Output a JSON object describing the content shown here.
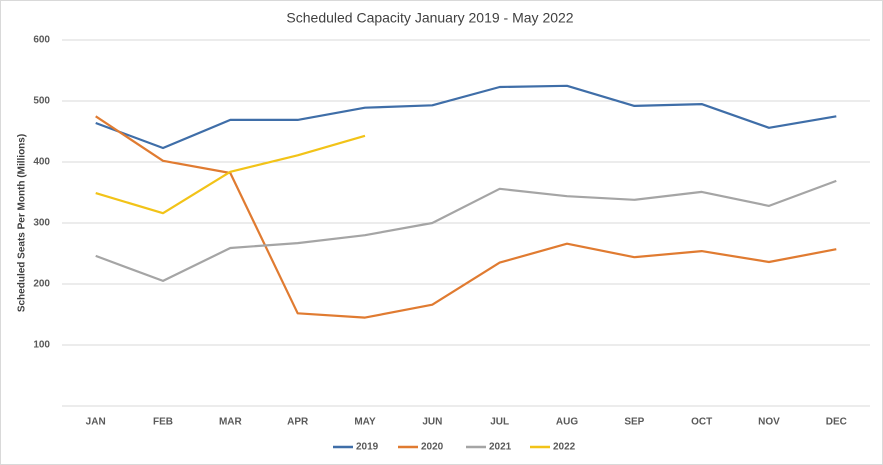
{
  "chart_data": {
    "type": "line",
    "title": "Scheduled Capacity January 2019   - May 2022",
    "y_label": "Scheduled Seats Per Month (Millions)",
    "categories": [
      "JAN",
      "FEB",
      "MAR",
      "APR",
      "MAY",
      "JUN",
      "JUL",
      "AUG",
      "SEP",
      "OCT",
      "NOV",
      "DEC"
    ],
    "series": [
      {
        "name": "2019",
        "color": "#3f6ea8",
        "values": [
          464,
          423,
          469,
          469,
          489,
          493,
          523,
          525,
          492,
          495,
          456,
          475
        ]
      },
      {
        "name": "2020",
        "color": "#e07b31",
        "values": [
          475,
          402,
          382,
          152,
          145,
          166,
          235,
          266,
          244,
          254,
          236,
          257
        ]
      },
      {
        "name": "2021",
        "color": "#a5a5a5",
        "values": [
          246,
          205,
          259,
          267,
          280,
          300,
          356,
          344,
          338,
          351,
          328,
          369
        ]
      },
      {
        "name": "2022",
        "color": "#f2c318",
        "values": [
          349,
          316,
          384,
          411,
          443,
          null,
          null,
          null,
          null,
          null,
          null,
          null
        ]
      }
    ],
    "ylim": [
      0,
      600
    ],
    "yticks": [
      100,
      200,
      300,
      400,
      500,
      600
    ],
    "grid": true,
    "legend": "bottom"
  }
}
